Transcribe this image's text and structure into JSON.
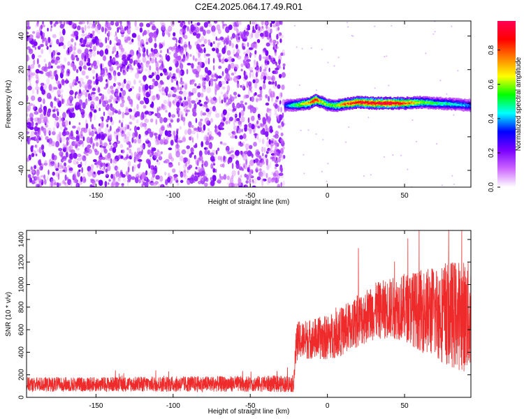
{
  "figure": {
    "title": "C2E4.2025.064.17.49.R01"
  },
  "chart_data": [
    {
      "type": "heatmap",
      "xlabel": "Height of straight line (km)",
      "ylabel": "Frequency (Hz)",
      "xlim": [
        -195,
        93
      ],
      "ylim": [
        -50,
        49
      ],
      "xticks": [
        -150,
        -100,
        -50,
        0,
        50
      ],
      "yticks": [
        -40,
        -20,
        0,
        20,
        40
      ],
      "xtick_labels": [
        "-150",
        "-100",
        "-50",
        "0",
        "50"
      ],
      "ytick_labels": [
        "-40",
        "-20",
        "0",
        "20",
        "40"
      ],
      "noise_region_x": [
        -195,
        -28
      ],
      "noise_color": "#7a00ff",
      "signal_track": {
        "x": [
          -28,
          -20,
          -12,
          -8,
          -5,
          0,
          5,
          10,
          20,
          30,
          40,
          50,
          60,
          70,
          80,
          93
        ],
        "frequency": [
          -1.5,
          -1,
          0,
          2,
          1,
          -1,
          -1.5,
          -0.5,
          0.5,
          0,
          0,
          0,
          0.5,
          0,
          -0.5,
          -1.5
        ],
        "amplitude": [
          0.3,
          0.55,
          0.75,
          0.95,
          0.7,
          0.55,
          0.6,
          0.8,
          0.95,
          0.95,
          1.0,
          0.85,
          0.6,
          0.5,
          0.45,
          0.35
        ]
      },
      "colorbar": {
        "label": "Normalized spectral amplitude",
        "range": [
          0,
          0.97
        ],
        "ticks": [
          0.0,
          0.2,
          0.4,
          0.6,
          0.8
        ],
        "tick_labels": [
          "0.0",
          "0.2",
          "0.4",
          "0.6",
          "0.8"
        ],
        "colors": [
          "#ffffff",
          "#cc66ff",
          "#7a00ff",
          "#0000ff",
          "#00ffff",
          "#00ff00",
          "#ffff00",
          "#ff8000",
          "#ff0000",
          "#ff0055"
        ]
      },
      "grid": false
    },
    {
      "type": "line",
      "xlabel": "Height of straight line (km)",
      "ylabel": "SNR (10 * v/v)",
      "xlim": [
        -195,
        93
      ],
      "ylim": [
        0,
        1480
      ],
      "xticks": [
        -150,
        -100,
        -50,
        0,
        50
      ],
      "yticks": [
        0,
        200,
        400,
        600,
        800,
        1000,
        1200,
        1400
      ],
      "xtick_labels": [
        "-150",
        "-100",
        "-50",
        "0",
        "50"
      ],
      "ytick_labels": [
        "0",
        "200",
        "400",
        "600",
        "800",
        "1000",
        "1200",
        "1400"
      ],
      "series": [
        {
          "color": "#ee2a2a",
          "x": [
            -195,
            -150,
            -100,
            -50,
            -22,
            -20,
            -10,
            0,
            10,
            20,
            30,
            40,
            50,
            60,
            70,
            80,
            90,
            93
          ],
          "baseline": [
            115,
            115,
            118,
            120,
            120,
            500,
            520,
            530,
            590,
            680,
            760,
            790,
            800,
            770,
            760,
            740,
            720,
            700
          ],
          "spread": [
            65,
            65,
            70,
            70,
            75,
            170,
            180,
            200,
            220,
            240,
            250,
            270,
            300,
            360,
            420,
            480,
            500,
            500
          ]
        }
      ],
      "grid": false
    }
  ]
}
